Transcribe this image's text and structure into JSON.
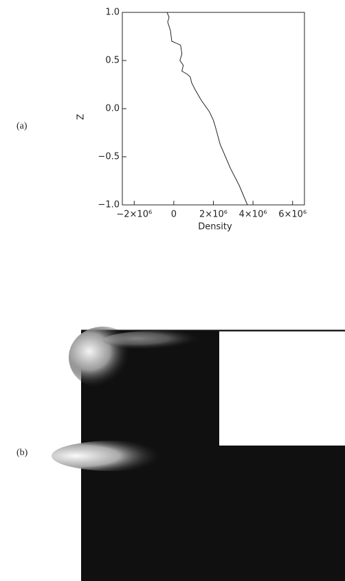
{
  "panel_labels": [
    "(a)",
    "(b)"
  ],
  "chart_data": {
    "type": "line",
    "x_label": "Density",
    "y_label": "Z",
    "series": [
      {
        "color": "#222222",
        "x": [
          -340000,
          -240000,
          -310000,
          -170000,
          -100000,
          340000,
          410000,
          310000,
          480000,
          410000,
          660000,
          830000,
          900000,
          1070000,
          1380000,
          1790000,
          2000000,
          2100000,
          2340000,
          2860000,
          3310000,
          3720000
        ],
        "values": [
          1.0,
          0.95,
          0.9,
          0.81,
          0.7,
          0.66,
          0.57,
          0.5,
          0.45,
          0.39,
          0.36,
          0.33,
          0.27,
          0.2,
          0.09,
          -0.03,
          -0.12,
          -0.19,
          -0.37,
          -0.62,
          -0.8,
          -1.0
        ]
      }
    ],
    "xlim": [
      -2600000,
      6600000
    ],
    "xticks": [
      {
        "value": -2000000,
        "label": "−2×10⁶"
      },
      0,
      {
        "value": 2000000,
        "label": "2×10⁶"
      },
      {
        "value": 4000000,
        "label": "4×10⁶"
      },
      {
        "value": 6000000,
        "label": "6×10⁶"
      }
    ],
    "ylim": [
      -1.0,
      1.0
    ],
    "yticks": [
      {
        "value": -1.0,
        "label": "−1.0"
      },
      {
        "value": -0.5,
        "label": "−0.5"
      },
      {
        "value": 0,
        "label": "0.0"
      },
      0.5,
      {
        "value": 1.0,
        "label": "1.0"
      }
    ]
  }
}
